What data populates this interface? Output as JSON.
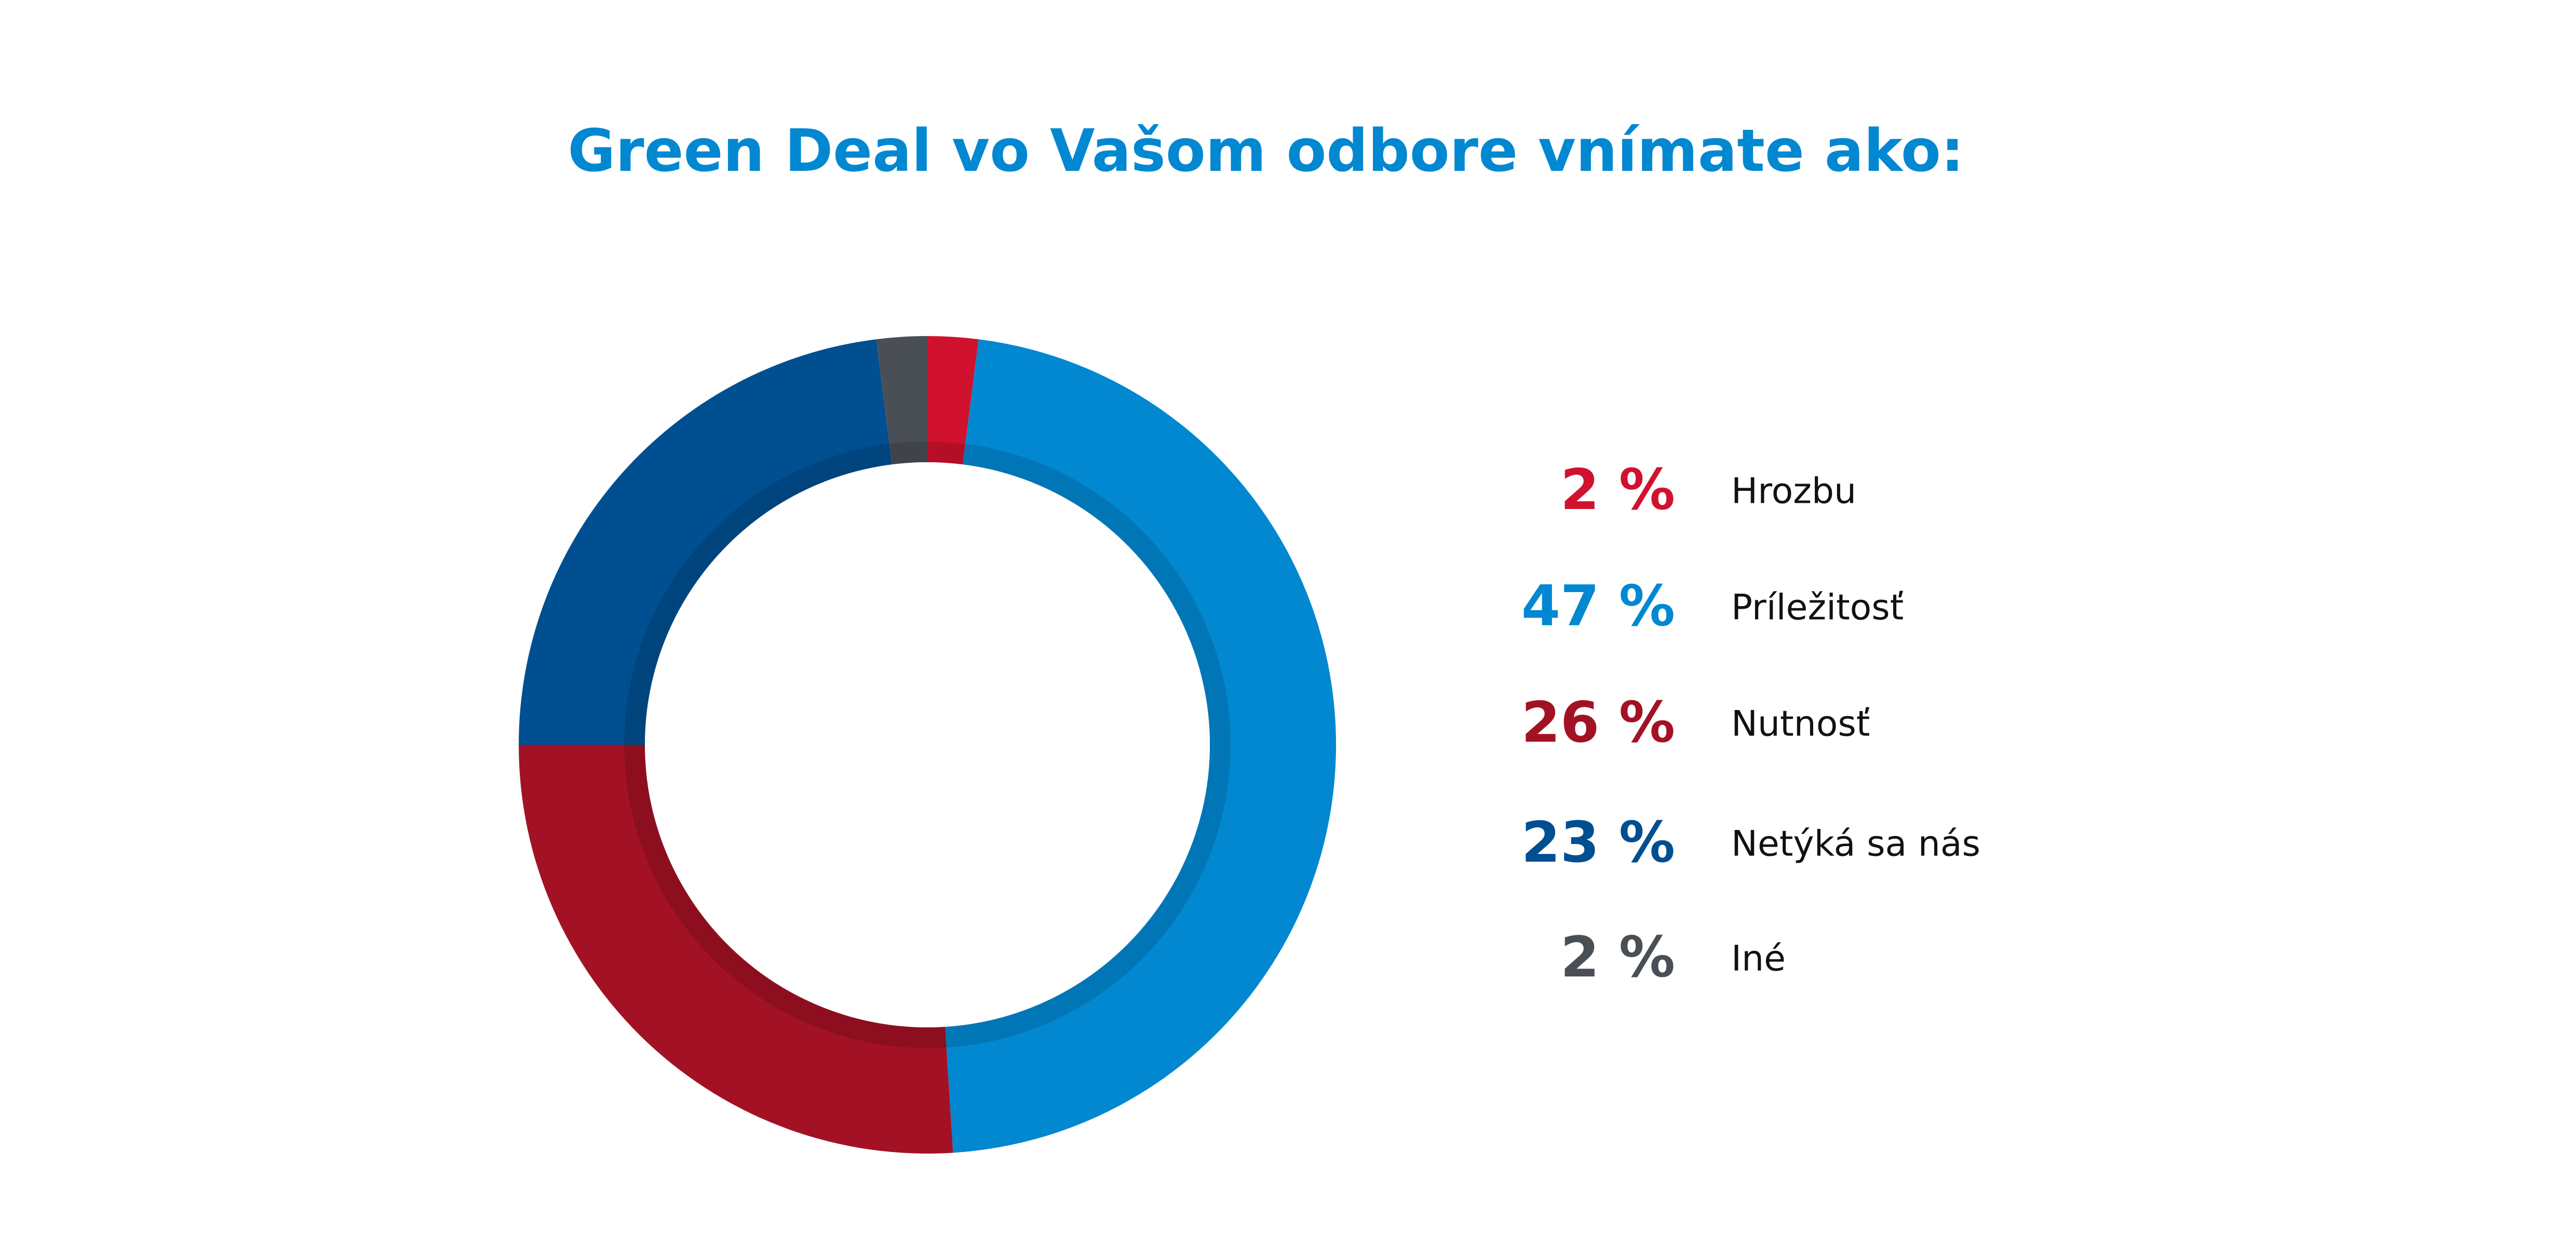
{
  "chart_data": {
    "type": "donut",
    "title": "Green Deal vo Vašom odbore vnímate ako:",
    "categories": [
      "Hrozbu",
      "Príležitosť",
      "Nutnosť",
      "Netýká sa nás",
      "Iné"
    ],
    "values": [
      2,
      47,
      26,
      23,
      2
    ],
    "value_labels": [
      "2 %",
      "47 %",
      "26 %",
      "23 %",
      "2 %"
    ],
    "colors": [
      "#d0122f",
      "#0288d1",
      "#a31224",
      "#004f91",
      "#4a4f55"
    ]
  }
}
